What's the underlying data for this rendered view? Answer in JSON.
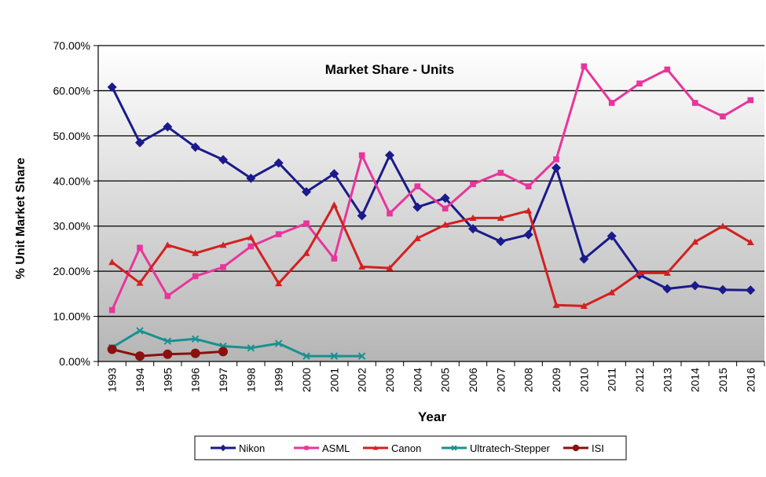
{
  "chart_data": {
    "type": "line",
    "title": "Market Share - Units",
    "xlabel": "Year",
    "ylabel": "% Unit Market Share",
    "x": [
      "1993",
      "1994",
      "1995",
      "1996",
      "1997",
      "1998",
      "1999",
      "2000",
      "2001",
      "2002",
      "2003",
      "2004",
      "2005",
      "2006",
      "2007",
      "2008",
      "2009",
      "2010",
      "2011",
      "2012",
      "2013",
      "2014",
      "2015",
      "2016"
    ],
    "ylim": [
      0,
      70
    ],
    "yticks": [
      "0.00%",
      "10.00%",
      "20.00%",
      "30.00%",
      "40.00%",
      "50.00%",
      "60.00%",
      "70.00%"
    ],
    "grid": true,
    "legend_position": "bottom",
    "series": [
      {
        "name": "Nikon",
        "color": "#1a1a8c",
        "marker": "diamond",
        "values": [
          60.8,
          48.5,
          52.0,
          47.5,
          44.7,
          40.6,
          44.0,
          37.6,
          41.6,
          32.3,
          45.7,
          34.2,
          36.2,
          29.4,
          26.6,
          28.1,
          42.9,
          22.7,
          27.8,
          19.2,
          16.1,
          16.8,
          15.9,
          15.8
        ]
      },
      {
        "name": "ASML",
        "color": "#e8359c",
        "marker": "square",
        "values": [
          11.4,
          25.2,
          14.5,
          18.9,
          20.9,
          25.5,
          28.2,
          30.6,
          22.8,
          45.7,
          32.8,
          38.8,
          33.9,
          39.3,
          41.8,
          38.8,
          44.8,
          65.4,
          57.3,
          61.6,
          64.7,
          57.3,
          54.3,
          57.9
        ]
      },
      {
        "name": "Canon",
        "color": "#d42020",
        "marker": "triangle",
        "values": [
          22.0,
          17.4,
          25.8,
          24.0,
          25.8,
          27.5,
          17.3,
          24.0,
          34.7,
          21.0,
          20.7,
          27.3,
          30.3,
          31.8,
          31.8,
          33.4,
          12.5,
          12.3,
          15.3,
          19.6,
          19.6,
          26.5,
          30.0,
          26.4
        ]
      },
      {
        "name": "Ultratech-Stepper",
        "color": "#1a9090",
        "marker": "x",
        "values": [
          3.1,
          6.8,
          4.5,
          5.0,
          3.4,
          3.0,
          4.0,
          1.2,
          1.2,
          1.2,
          null,
          null,
          null,
          null,
          null,
          null,
          null,
          null,
          null,
          null,
          null,
          null,
          null,
          null
        ]
      },
      {
        "name": "ISI",
        "color": "#8b1010",
        "marker": "circle",
        "values": [
          2.7,
          1.2,
          1.6,
          1.8,
          2.2,
          null,
          null,
          null,
          null,
          null,
          null,
          null,
          null,
          null,
          null,
          null,
          null,
          null,
          null,
          null,
          null,
          null,
          null,
          null
        ]
      }
    ]
  }
}
